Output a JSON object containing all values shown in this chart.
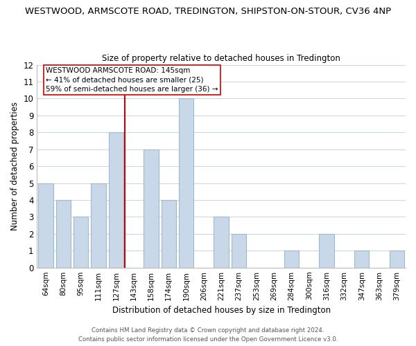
{
  "title_line1": "WESTWOOD, ARMSCOTE ROAD, TREDINGTON, SHIPSTON-ON-STOUR, CV36 4NP",
  "title_line2": "Size of property relative to detached houses in Tredington",
  "xlabel": "Distribution of detached houses by size in Tredington",
  "ylabel": "Number of detached properties",
  "bin_labels": [
    "64sqm",
    "80sqm",
    "95sqm",
    "111sqm",
    "127sqm",
    "143sqm",
    "158sqm",
    "174sqm",
    "190sqm",
    "206sqm",
    "221sqm",
    "237sqm",
    "253sqm",
    "269sqm",
    "284sqm",
    "300sqm",
    "316sqm",
    "332sqm",
    "347sqm",
    "363sqm",
    "379sqm"
  ],
  "bar_heights": [
    5,
    4,
    3,
    5,
    8,
    0,
    7,
    4,
    10,
    0,
    3,
    2,
    0,
    0,
    1,
    0,
    2,
    0,
    1,
    0,
    1
  ],
  "bar_color": "#c8d8e8",
  "bar_edge_color": "#a0b8cc",
  "reference_line_color": "#cc0000",
  "reference_line_x": 4.5,
  "ylim": [
    0,
    12
  ],
  "yticks": [
    0,
    1,
    2,
    3,
    4,
    5,
    6,
    7,
    8,
    9,
    10,
    11,
    12
  ],
  "annotation_line1": "WESTWOOD ARMSCOTE ROAD: 145sqm",
  "annotation_line2": "← 41% of detached houses are smaller (25)",
  "annotation_line3": "59% of semi-detached houses are larger (36) →",
  "footer_line1": "Contains HM Land Registry data © Crown copyright and database right 2024.",
  "footer_line2": "Contains public sector information licensed under the Open Government Licence v3.0.",
  "background_color": "#ffffff",
  "grid_color": "#c8d4e0"
}
